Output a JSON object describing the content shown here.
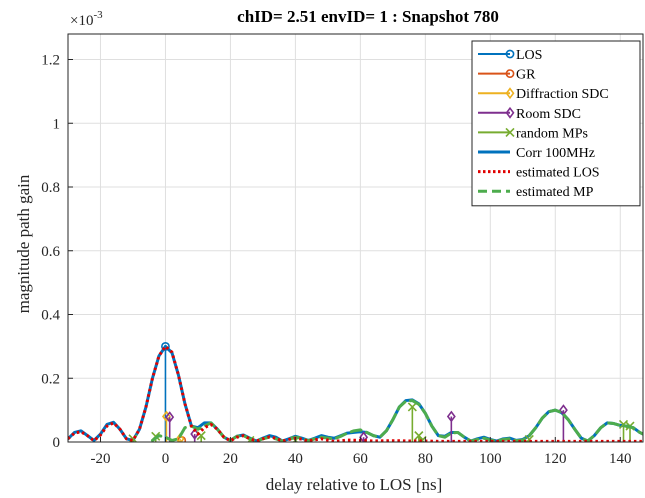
{
  "chart_data": {
    "type": "line",
    "title": "chID= 2.51 envID= 1 : Snapshot 780",
    "xlabel": "delay relative to LOS [ns]",
    "ylabel": "magnitude path gain",
    "exponent_label": "×10",
    "exponent_power": "-3",
    "xlim": [
      -30,
      147
    ],
    "ylim": [
      0,
      0.00128
    ],
    "y_scale_factor": 0.001,
    "xticks": [
      -20,
      0,
      20,
      40,
      60,
      80,
      100,
      120,
      140
    ],
    "xtick_labels": [
      "-20",
      "0",
      "20",
      "40",
      "60",
      "80",
      "100",
      "120",
      "140"
    ],
    "yticks": [
      0,
      0.0002,
      0.0004,
      0.0006,
      0.0008,
      0.001,
      0.0012
    ],
    "ytick_labels": [
      "0",
      "0.2",
      "0.4",
      "0.6",
      "0.8",
      "1",
      "1.2"
    ],
    "grid": true,
    "legend_position": "top-right",
    "stems": [
      {
        "name": "LOS",
        "color": "#0072bd",
        "marker": "circle",
        "points": [
          {
            "x": 0,
            "y": 0.0003
          }
        ]
      },
      {
        "name": "GR",
        "color": "#d95319",
        "marker": "circle",
        "points": [
          {
            "x": 5,
            "y": 5e-06
          }
        ]
      },
      {
        "name": "Diffraction SDC",
        "color": "#edb120",
        "marker": "diamond",
        "points": [
          {
            "x": 0.3,
            "y": 8e-05
          },
          {
            "x": 4.5,
            "y": 1e-05
          }
        ]
      },
      {
        "name": "Room SDC",
        "color": "#7e2f8e",
        "marker": "diamond",
        "points": [
          {
            "x": 1.3,
            "y": 7.8e-05
          },
          {
            "x": 9,
            "y": 2.5e-05
          },
          {
            "x": 61,
            "y": 1.5e-05
          },
          {
            "x": 88,
            "y": 8e-05
          },
          {
            "x": 122.5,
            "y": 0.0001
          }
        ]
      },
      {
        "name": "random MPs",
        "color": "#77ac30",
        "marker": "x",
        "points": [
          {
            "x": -10,
            "y": 1e-05
          },
          {
            "x": -3,
            "y": 1.8e-05
          },
          {
            "x": 11,
            "y": 2e-05
          },
          {
            "x": 26,
            "y": 5e-06
          },
          {
            "x": 40,
            "y": 5e-06
          },
          {
            "x": 76,
            "y": 0.00011
          },
          {
            "x": 78,
            "y": 2e-05
          },
          {
            "x": 79,
            "y": 5e-06
          },
          {
            "x": 112,
            "y": 8e-06
          },
          {
            "x": 141,
            "y": 5.5e-05
          },
          {
            "x": 143,
            "y": 5e-05
          }
        ]
      }
    ],
    "curves": [
      {
        "name": "Corr 100MHz",
        "color": "#0072bd",
        "style": "solid",
        "x": [
          -30,
          -28,
          -26,
          -24,
          -22,
          -20,
          -18,
          -16,
          -14,
          -12,
          -10,
          -8,
          -6,
          -4,
          -2,
          0,
          2,
          4,
          6,
          8,
          10,
          12,
          14,
          16,
          18,
          20,
          22,
          24,
          26,
          28,
          30,
          32,
          34,
          36,
          38,
          40,
          42,
          44,
          46,
          48,
          50,
          52,
          54,
          56,
          58,
          60,
          62,
          64,
          66,
          68,
          70,
          72,
          74,
          76,
          78,
          80,
          82,
          84,
          86,
          88,
          90,
          92,
          94,
          96,
          98,
          100,
          102,
          104,
          106,
          108,
          110,
          112,
          114,
          116,
          118,
          120,
          122,
          124,
          126,
          128,
          130,
          132,
          134,
          136,
          138,
          140,
          142,
          144,
          146,
          147
        ],
        "y": [
          1e-05,
          3e-05,
          3.5e-05,
          2e-05,
          5e-06,
          2.5e-05,
          5.5e-05,
          6.2e-05,
          4e-05,
          1e-05,
          5e-06,
          4e-05,
          0.00011,
          0.0002,
          0.00027,
          0.0003,
          0.00028,
          0.00021,
          0.00012,
          5e-05,
          4.5e-05,
          6e-05,
          6e-05,
          4e-05,
          1.5e-05,
          5e-06,
          1.8e-05,
          2.2e-05,
          1.2e-05,
          3e-06,
          1.2e-05,
          2e-05,
          1.5e-05,
          3e-06,
          1e-05,
          1.8e-05,
          1.2e-05,
          5e-06,
          1.2e-05,
          2e-05,
          1.5e-05,
          1.2e-05,
          2e-05,
          2.8e-05,
          3e-05,
          3.2e-05,
          3e-05,
          2e-05,
          1.5e-05,
          3.5e-05,
          7e-05,
          0.00011,
          0.00013,
          0.000132,
          0.00012,
          9e-05,
          5e-05,
          2e-05,
          1.8e-05,
          3e-05,
          3e-05,
          1.5e-05,
          3e-06,
          1e-05,
          1.5e-05,
          8e-06,
          3e-06,
          1e-05,
          1.2e-05,
          5e-06,
          8e-06,
          2e-05,
          4.5e-05,
          7.5e-05,
          9.5e-05,
          0.0001,
          9.2e-05,
          7e-05,
          4e-05,
          1.2e-05,
          3e-06,
          2e-05,
          4.5e-05,
          6e-05,
          5.8e-05,
          5.2e-05,
          5e-05,
          4.5e-05,
          3e-05,
          2.5e-05
        ]
      },
      {
        "name": "estimated LOS",
        "color": "#e00000",
        "style": "dotted",
        "x": [
          -30,
          -28,
          -26,
          -24,
          -22,
          -20,
          -18,
          -16,
          -14,
          -12,
          -10,
          -8,
          -6,
          -4,
          -2,
          0,
          2,
          4,
          6,
          8,
          10,
          12,
          14,
          16,
          18,
          20,
          22,
          24,
          26,
          28,
          30,
          32,
          34,
          36,
          38,
          40,
          42,
          44,
          46,
          48,
          50,
          52,
          56,
          60,
          64,
          68,
          72,
          76,
          80,
          84,
          88,
          92,
          96,
          100,
          104,
          108,
          112,
          116,
          120,
          124,
          128,
          132,
          136,
          140,
          144,
          147
        ],
        "y": [
          1e-05,
          2.8e-05,
          3.2e-05,
          2e-05,
          4e-06,
          2.2e-05,
          5e-05,
          6e-05,
          4e-05,
          1e-05,
          5e-06,
          4e-05,
          0.00011,
          0.0002,
          0.00027,
          0.0003,
          0.000282,
          0.00021,
          0.00012,
          5e-05,
          2.5e-05,
          4.5e-05,
          5.5e-05,
          4e-05,
          1.5e-05,
          4e-06,
          1.5e-05,
          2e-05,
          1e-05,
          3e-06,
          1e-05,
          1.6e-05,
          1.2e-05,
          3e-06,
          8e-06,
          1.2e-05,
          9e-06,
          3e-06,
          7e-06,
          1e-05,
          6e-06,
          2e-06,
          6e-06,
          5e-06,
          3e-06,
          4e-06,
          4e-06,
          3e-06,
          3e-06,
          2e-06,
          2e-06,
          2e-06,
          2e-06,
          2e-06,
          2e-06,
          2e-06,
          2e-06,
          2e-06,
          2e-06,
          2e-06,
          2e-06,
          2e-06,
          2e-06,
          2e-06,
          2e-06,
          2e-06
        ]
      },
      {
        "name": "estimated MP",
        "color": "#4dac4d",
        "style": "dashed",
        "x": [
          -4,
          -2,
          0,
          2,
          4,
          6,
          8,
          10,
          12,
          14,
          16,
          18,
          20,
          22,
          24,
          26,
          28,
          30,
          32,
          34,
          36,
          38,
          40,
          42,
          44,
          46,
          48,
          50,
          52,
          54,
          56,
          58,
          60,
          62,
          64,
          66,
          68,
          70,
          72,
          74,
          76,
          78,
          80,
          82,
          84,
          86,
          88,
          90,
          92,
          94,
          96,
          98,
          100,
          102,
          104,
          106,
          108,
          110,
          112,
          114,
          116,
          118,
          120,
          122,
          124,
          126,
          128,
          130,
          132,
          134,
          136,
          138,
          140,
          142,
          144,
          146,
          147
        ],
        "y": [
          5e-06,
          2e-05,
          1.5e-05,
          5e-06,
          1e-05,
          4.5e-05,
          5e-05,
          4e-05,
          5e-05,
          6e-05,
          4e-05,
          1.5e-05,
          5e-06,
          1.8e-05,
          2e-05,
          1e-05,
          3e-06,
          1e-05,
          1.5e-05,
          1e-05,
          3e-06,
          8e-06,
          1.5e-05,
          1.2e-05,
          4e-06,
          1e-05,
          1.5e-05,
          1.2e-05,
          1e-05,
          1.8e-05,
          2.8e-05,
          3.5e-05,
          3.8e-05,
          3e-05,
          2e-05,
          1.5e-05,
          3.5e-05,
          7e-05,
          0.00011,
          0.000128,
          0.00013,
          0.000118,
          9e-05,
          5e-05,
          2e-05,
          1.5e-05,
          2.8e-05,
          3e-05,
          1.5e-05,
          3e-06,
          8e-06,
          1.2e-05,
          6e-06,
          3e-06,
          8e-06,
          1e-05,
          4e-06,
          6e-06,
          2e-05,
          4.5e-05,
          7.5e-05,
          9.5e-05,
          0.0001,
          9.2e-05,
          7e-05,
          4e-05,
          1.2e-05,
          3e-06,
          2e-05,
          4.5e-05,
          6e-05,
          5.8e-05,
          5.2e-05,
          5e-05,
          4.5e-05,
          3e-05,
          2.5e-05
        ]
      }
    ],
    "legend": [
      {
        "label": "LOS",
        "color": "#0072bd",
        "kind": "stem",
        "marker": "circle"
      },
      {
        "label": "GR",
        "color": "#d95319",
        "kind": "stem",
        "marker": "circle"
      },
      {
        "label": "Diffraction SDC",
        "color": "#edb120",
        "kind": "stem",
        "marker": "diamond"
      },
      {
        "label": "Room SDC",
        "color": "#7e2f8e",
        "kind": "stem",
        "marker": "diamond"
      },
      {
        "label": "random MPs",
        "color": "#77ac30",
        "kind": "stem",
        "marker": "x"
      },
      {
        "label": "Corr 100MHz",
        "color": "#0072bd",
        "kind": "line",
        "style": "solid"
      },
      {
        "label": "estimated LOS",
        "color": "#e00000",
        "kind": "line",
        "style": "dotted"
      },
      {
        "label": "estimated MP",
        "color": "#4dac4d",
        "kind": "line",
        "style": "dashed"
      }
    ]
  }
}
